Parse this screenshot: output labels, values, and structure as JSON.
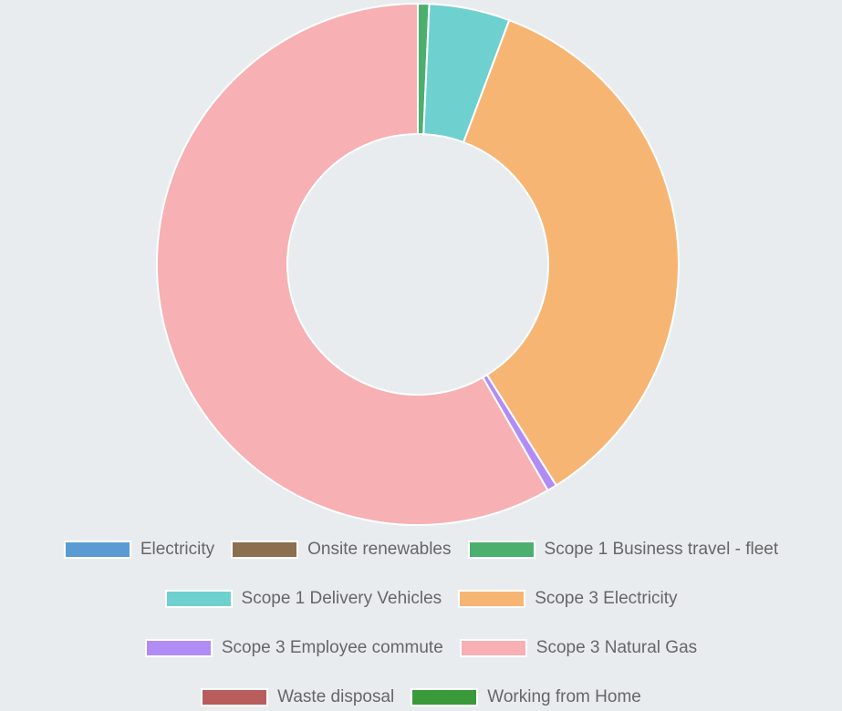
{
  "chart_data": {
    "type": "doughnut",
    "categories": [
      "Electricity",
      "Onsite renewables",
      "Scope 1 Business travel - fleet",
      "Scope 1 Delivery Vehicles",
      "Scope 3 Electricity",
      "Scope 3 Employee commute",
      "Scope 3 Natural Gas",
      "Waste disposal",
      "Working from Home"
    ],
    "values": [
      0,
      0,
      0.7,
      5,
      35.4,
      0.6,
      58.3,
      0,
      0
    ],
    "colors": [
      "#5a9bd4",
      "#8b6f4e",
      "#4caf6e",
      "#6fd0d0",
      "#f7b574",
      "#b18cf5",
      "#f7b0b3",
      "#b85c5c",
      "#3a9a3a"
    ],
    "legend": "bottom"
  }
}
